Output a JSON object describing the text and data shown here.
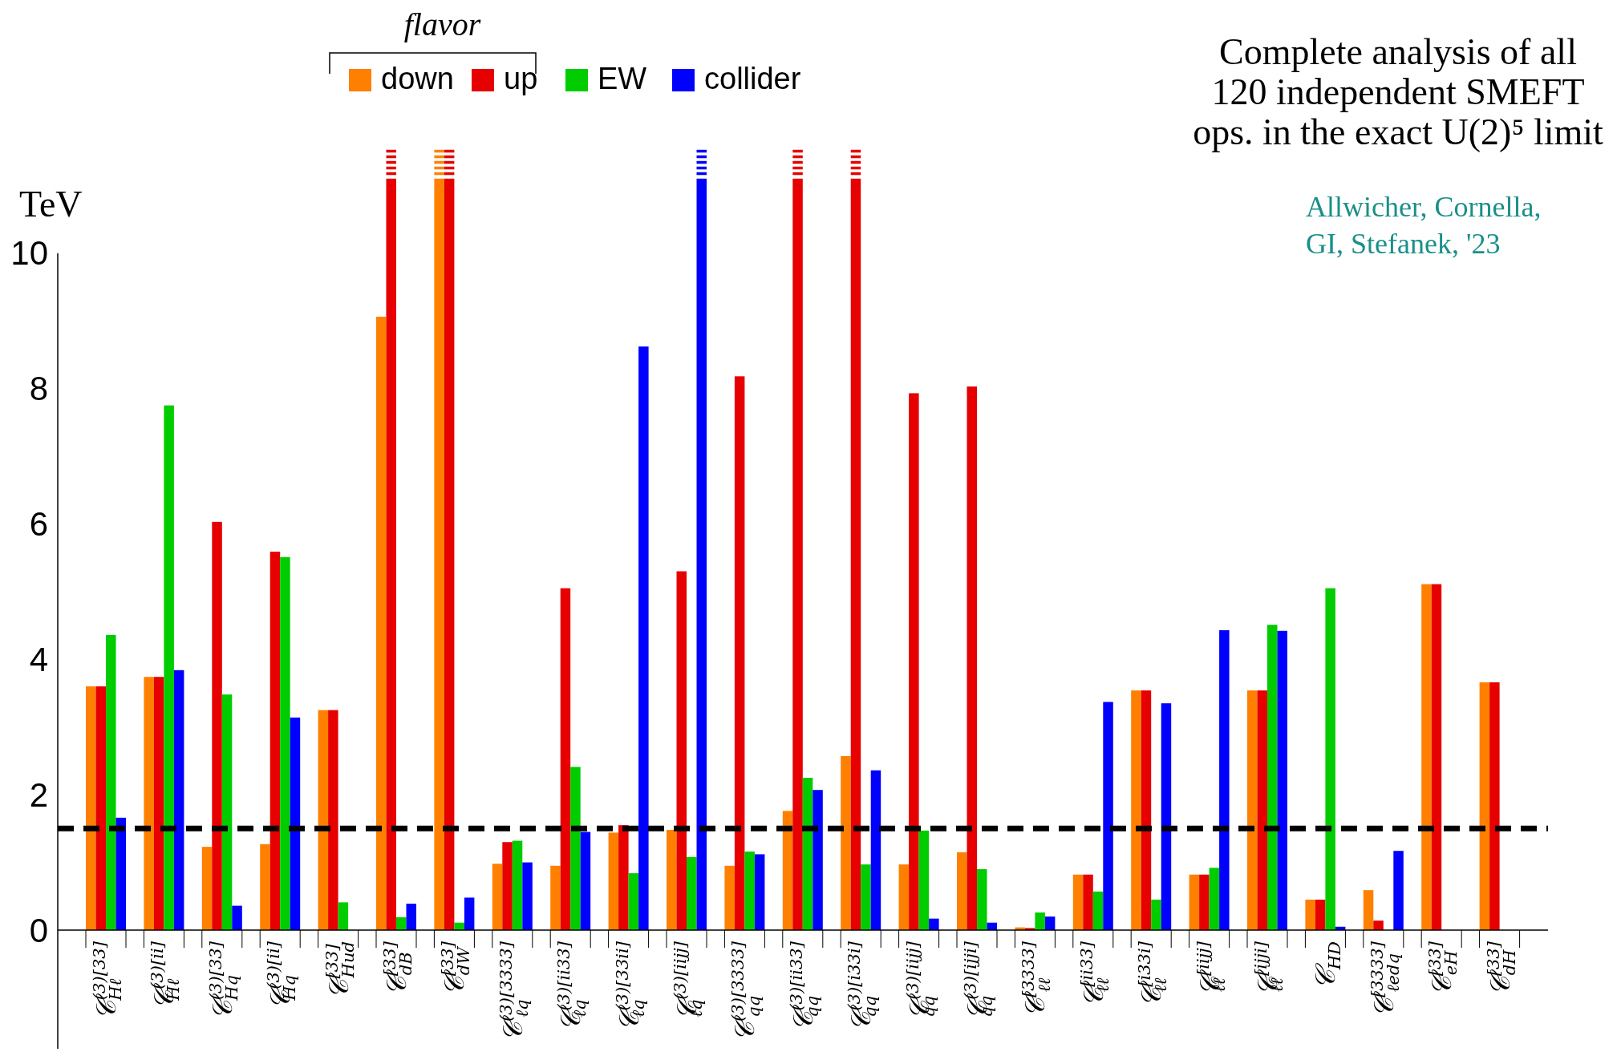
{
  "chart_data": {
    "type": "bar",
    "title": "Complete analysis of all\n120 independent  SMEFT\nops. in the exact U(2)⁵ limit",
    "ylabel": "TeV",
    "legend_title": "flavor",
    "legend": "top",
    "annotations": [
      "Allwicher, Cornella,\nGI, Stefanek, '23"
    ],
    "categories": [
      "𝒞$^{(3)[33]}$$_{Hℓ}$",
      "𝒞$^{(3)[ii]}$$_{Hℓ}$",
      "𝒞$^{(3)[33]}$$_{Hq}$",
      "𝒞$^{(3)[ii]}$$_{Hq}$",
      "𝒞$^{[33]}$$_{Hud}$",
      "𝒞$^{[33]}$$_{dB}$",
      "𝒞$^{[33]}$$_{dW}$",
      "𝒞$^{(3)[3333]}$$_{ℓq}$",
      "𝒞$^{(3)[ii33]}$$_{ℓq}$",
      "𝒞$^{(3)[33ii]}$$_{ℓq}$",
      "𝒞$^{(3)[iijj]}$$_{ℓq}$",
      "𝒞$^{(3)[3333]}$$_{qq}$",
      "𝒞$^{(3)[ii33]}$$_{qq}$",
      "𝒞$^{(3)[i33i]}$$_{qq}$",
      "𝒞$^{(3)[iijj]}$$_{qq}$",
      "𝒞$^{(3)[ijji]}$$_{qq}$",
      "𝒞$^{[3333]}$$_{ℓℓ}$",
      "𝒞$^{[ii33]}$$_{ℓℓ}$",
      "𝒞$^{[i33i]}$$_{ℓℓ}$",
      "𝒞$^{[iijj]}$$_{ℓℓ}$",
      "𝒞$^{[ijji]}$$_{ℓℓ}$",
      "𝒞$_{HD}$",
      "𝒞$^{[3333]}$$_{ℓedq}$",
      "𝒞$^{[33]}$$_{eH}$",
      "𝒞$^{[33]}$$_{dH}$"
    ],
    "series": [
      {
        "name": "down",
        "color": "#ff8000",
        "values": [
          3.6,
          3.74,
          1.23,
          1.27,
          3.25,
          9.06,
          11.1,
          0.98,
          0.95,
          1.44,
          1.48,
          0.95,
          1.76,
          2.57,
          0.97,
          1.15,
          0.04,
          0.82,
          3.54,
          0.82,
          3.54,
          0.45,
          0.59,
          5.11,
          3.66
        ]
      },
      {
        "name": "up",
        "color": "#e60000",
        "values": [
          3.6,
          3.74,
          6.03,
          5.59,
          3.25,
          11.1,
          11.1,
          1.3,
          5.05,
          1.55,
          5.3,
          8.18,
          11.1,
          11.1,
          7.93,
          8.03,
          0.03,
          0.82,
          3.54,
          0.82,
          3.54,
          0.45,
          0.14,
          5.11,
          3.66
        ]
      },
      {
        "name": "EW",
        "color": "#00cc00",
        "values": [
          4.36,
          7.75,
          3.48,
          5.51,
          0.41,
          0.19,
          0.11,
          1.32,
          2.41,
          0.84,
          1.08,
          1.16,
          2.25,
          0.97,
          1.47,
          0.9,
          0.26,
          0.57,
          0.45,
          0.92,
          4.51,
          5.05,
          null,
          null,
          null
        ]
      },
      {
        "name": "collider",
        "color": "#0000ff",
        "values": [
          1.66,
          3.84,
          0.36,
          3.14,
          null,
          0.39,
          0.48,
          1.0,
          1.45,
          8.62,
          11.1,
          1.12,
          2.07,
          2.36,
          0.17,
          0.11,
          0.2,
          3.37,
          3.35,
          4.43,
          4.42,
          0.05,
          1.17,
          null,
          null
        ]
      }
    ],
    "ylim": [
      0,
      11.5
    ],
    "yticks": [
      0,
      2,
      4,
      6,
      8,
      10
    ],
    "ref_lines": [
      {
        "axis": "y",
        "value": 1.5,
        "color": "#000000",
        "line_style": "dashed"
      }
    ]
  }
}
